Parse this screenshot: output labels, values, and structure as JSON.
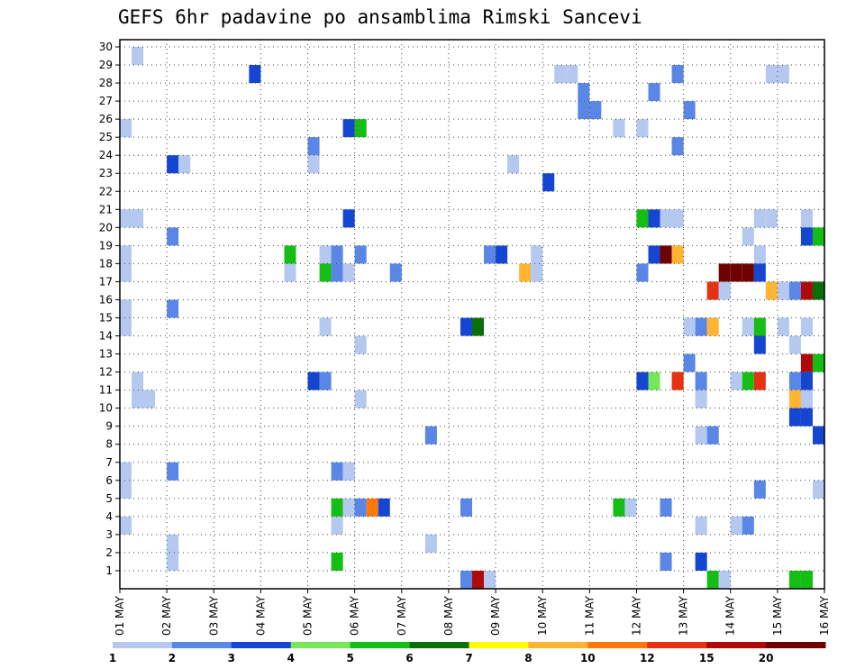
{
  "chart_data": {
    "type": "heatmap",
    "title": "GEFS 6hr padavine po ansamblima Rimski Sancevi",
    "xlabel": "",
    "ylabel": "",
    "x_tick_labels": [
      "01 MAY",
      "02 MAY",
      "03 MAY",
      "04 MAY",
      "05 MAY",
      "06 MAY",
      "07 MAY",
      "08 MAY",
      "09 MAY",
      "10 MAY",
      "11 MAY",
      "12 MAY",
      "13 MAY",
      "14 MAY",
      "15 MAY",
      "16 MAY"
    ],
    "xlim": [
      0,
      60
    ],
    "y_tick_labels": [
      "1",
      "2",
      "3",
      "4",
      "5",
      "6",
      "7",
      "8",
      "9",
      "10",
      "11",
      "12",
      "13",
      "14",
      "15",
      "16",
      "17",
      "18",
      "19",
      "20",
      "21",
      "22",
      "23",
      "24",
      "25",
      "26",
      "27",
      "28",
      "29",
      "30"
    ],
    "ylim": [
      0,
      30
    ],
    "grid": true,
    "legend": "bottom",
    "colorbar_labels": [
      "1",
      "2",
      "3",
      "4",
      "5",
      "6",
      "7",
      "8",
      "10",
      "12",
      "15",
      "20"
    ],
    "colorbar_colors": [
      "#b4c8f0",
      "#5a87e6",
      "#1446d2",
      "#78e65a",
      "#14be14",
      "#0a6e0a",
      "#ffff00",
      "#ffb432",
      "#ff780a",
      "#e63212",
      "#af0a0a",
      "#6e0000"
    ],
    "cells": [
      [
        2,
        29,
        1
      ],
      [
        48,
        28,
        2
      ],
      [
        56,
        28,
        1
      ],
      [
        57,
        28,
        1
      ],
      [
        12,
        28,
        3
      ],
      [
        38,
        28,
        1
      ],
      [
        39,
        28,
        1
      ],
      [
        40,
        27,
        2
      ],
      [
        40,
        26,
        2
      ],
      [
        46,
        27,
        2
      ],
      [
        41,
        26,
        2
      ],
      [
        49,
        26,
        2
      ],
      [
        1,
        25,
        1
      ],
      [
        20,
        25,
        3
      ],
      [
        21,
        25,
        5
      ],
      [
        43,
        25,
        1
      ],
      [
        45,
        25,
        1
      ],
      [
        17,
        24,
        2
      ],
      [
        48,
        24,
        2
      ],
      [
        5,
        23,
        3
      ],
      [
        6,
        23,
        1
      ],
      [
        17,
        23,
        1
      ],
      [
        34,
        23,
        1
      ],
      [
        37,
        22,
        3
      ],
      [
        45,
        20,
        5
      ],
      [
        1,
        20,
        1
      ],
      [
        2,
        20,
        1
      ],
      [
        20,
        20,
        3
      ],
      [
        46,
        20,
        3
      ],
      [
        47,
        20,
        1
      ],
      [
        48,
        20,
        1
      ],
      [
        55,
        20,
        1
      ],
      [
        56,
        20,
        1
      ],
      [
        59,
        20,
        1
      ],
      [
        5,
        19,
        2
      ],
      [
        54,
        19,
        1
      ],
      [
        59,
        19,
        3
      ],
      [
        60,
        19,
        5
      ],
      [
        1,
        18,
        1
      ],
      [
        15,
        18,
        5
      ],
      [
        18,
        18,
        1
      ],
      [
        19,
        18,
        2
      ],
      [
        21,
        18,
        2
      ],
      [
        32,
        18,
        2
      ],
      [
        33,
        18,
        3
      ],
      [
        36,
        18,
        1
      ],
      [
        46,
        18,
        3
      ],
      [
        47,
        18,
        12
      ],
      [
        48,
        18,
        8
      ],
      [
        55,
        18,
        1
      ],
      [
        1,
        17,
        1
      ],
      [
        15,
        17,
        1
      ],
      [
        18,
        17,
        5
      ],
      [
        19,
        17,
        2
      ],
      [
        20,
        17,
        1
      ],
      [
        24,
        17,
        2
      ],
      [
        35,
        17,
        8
      ],
      [
        36,
        17,
        1
      ],
      [
        45,
        17,
        2
      ],
      [
        52,
        17,
        12
      ],
      [
        53,
        17,
        12
      ],
      [
        54,
        17,
        12
      ],
      [
        55,
        17,
        3
      ],
      [
        51,
        16,
        10
      ],
      [
        52,
        16,
        1
      ],
      [
        56,
        16,
        8
      ],
      [
        57,
        16,
        1
      ],
      [
        58,
        16,
        2
      ],
      [
        59,
        16,
        11
      ],
      [
        60,
        16,
        6
      ],
      [
        1,
        15,
        1
      ],
      [
        5,
        15,
        2
      ],
      [
        1,
        14,
        1
      ],
      [
        18,
        14,
        1
      ],
      [
        30,
        14,
        3
      ],
      [
        31,
        14,
        6
      ],
      [
        49,
        14,
        1
      ],
      [
        50,
        14,
        2
      ],
      [
        51,
        14,
        8
      ],
      [
        54,
        14,
        1
      ],
      [
        55,
        14,
        5
      ],
      [
        57,
        14,
        1
      ],
      [
        59,
        14,
        1
      ],
      [
        21,
        13,
        1
      ],
      [
        55,
        13,
        3
      ],
      [
        58,
        13,
        1
      ],
      [
        49,
        12,
        2
      ],
      [
        59,
        12,
        11
      ],
      [
        60,
        12,
        5
      ],
      [
        2,
        11,
        1
      ],
      [
        17,
        11,
        3
      ],
      [
        18,
        11,
        2
      ],
      [
        45,
        11,
        3
      ],
      [
        46,
        11,
        4
      ],
      [
        48,
        11,
        10
      ],
      [
        50,
        11,
        2
      ],
      [
        53,
        11,
        1
      ],
      [
        54,
        11,
        5
      ],
      [
        55,
        11,
        10
      ],
      [
        58,
        11,
        2
      ],
      [
        59,
        11,
        3
      ],
      [
        2,
        10,
        1
      ],
      [
        3,
        10,
        1
      ],
      [
        21,
        10,
        1
      ],
      [
        50,
        10,
        1
      ],
      [
        58,
        10,
        8
      ],
      [
        59,
        10,
        1
      ],
      [
        58,
        9,
        3
      ],
      [
        59,
        9,
        3
      ],
      [
        27,
        8,
        2
      ],
      [
        50,
        8,
        1
      ],
      [
        51,
        8,
        2
      ],
      [
        60,
        8,
        3
      ],
      [
        1,
        6,
        1
      ],
      [
        5,
        6,
        2
      ],
      [
        19,
        6,
        2
      ],
      [
        20,
        6,
        1
      ],
      [
        1,
        5,
        1
      ],
      [
        55,
        5,
        2
      ],
      [
        60,
        5,
        1
      ],
      [
        19,
        4,
        5
      ],
      [
        20,
        4,
        1
      ],
      [
        21,
        4,
        2
      ],
      [
        22,
        4,
        9
      ],
      [
        23,
        4,
        3
      ],
      [
        30,
        4,
        2
      ],
      [
        43,
        4,
        5
      ],
      [
        44,
        4,
        1
      ],
      [
        47,
        4,
        2
      ],
      [
        1,
        3,
        1
      ],
      [
        19,
        3,
        1
      ],
      [
        50,
        3,
        1
      ],
      [
        53,
        3,
        1
      ],
      [
        54,
        3,
        2
      ],
      [
        5,
        2,
        1
      ],
      [
        27,
        2,
        1
      ],
      [
        5,
        1,
        1
      ],
      [
        19,
        1,
        5
      ],
      [
        47,
        1,
        2
      ],
      [
        50,
        1,
        3
      ],
      [
        30,
        0,
        2
      ],
      [
        31,
        0,
        11
      ],
      [
        32,
        0,
        1
      ],
      [
        51,
        0,
        5
      ],
      [
        52,
        0,
        1
      ],
      [
        58,
        0,
        5
      ],
      [
        59,
        0,
        5
      ]
    ]
  }
}
